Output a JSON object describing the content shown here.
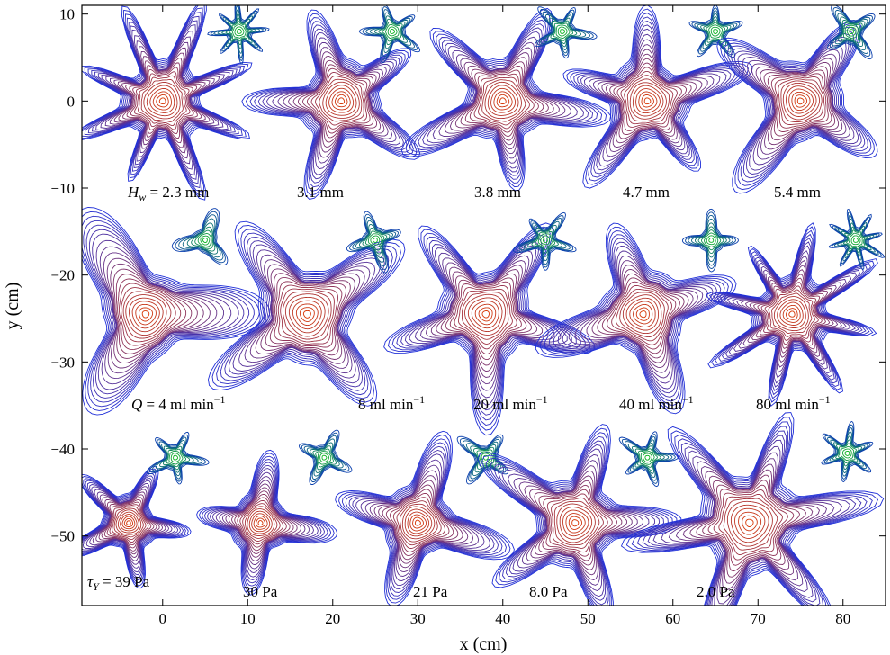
{
  "chart_data": {
    "type": "scatter",
    "title": "",
    "xlabel": "x (cm)",
    "ylabel": "y (cm)",
    "xlim": [
      -9.5,
      85
    ],
    "ylim": [
      -58,
      11
    ],
    "xticks": [
      0,
      10,
      20,
      30,
      40,
      50,
      60,
      70,
      80
    ],
    "yticks": [
      10,
      0,
      -10,
      -20,
      -30,
      -40,
      -50
    ],
    "tick_labels_x": [
      "0",
      "10",
      "20",
      "30",
      "40",
      "50",
      "60",
      "70",
      "80"
    ],
    "tick_labels_y": [
      "10",
      "0",
      "−10",
      "−20",
      "−30",
      "−40",
      "−50"
    ],
    "grid": false,
    "color_inner": "#e03a00",
    "color_outer": "#1f2fd8",
    "color_small_inner": "#18c41a",
    "color_small_outer": "#0a3fae",
    "rows": [
      {
        "parameter_symbol": "H",
        "parameter_subscript": "w",
        "parameter_unit": "mm",
        "patterns": [
          {
            "label": "2.3",
            "center": [
              0,
              0
            ],
            "arms": 8,
            "radius": 8.5,
            "small_center": [
              9,
              8
            ]
          },
          {
            "label": "3.1 mm",
            "center": [
              21,
              0
            ],
            "arms": 5,
            "radius": 8.5,
            "small_center": [
              27,
              8
            ]
          },
          {
            "label": "3.8 mm",
            "center": [
              40,
              0
            ],
            "arms": 5,
            "radius": 8.5,
            "small_center": [
              47,
              8
            ]
          },
          {
            "label": "4.7 mm",
            "center": [
              57,
              0
            ],
            "arms": 5,
            "radius": 8.5,
            "small_center": [
              65,
              8
            ]
          },
          {
            "label": "5.4 mm",
            "center": [
              75,
              0
            ],
            "arms": 4,
            "radius": 8.5,
            "small_center": [
              81,
              8
            ]
          }
        ]
      },
      {
        "parameter_symbol": "Q",
        "parameter_unit": "ml min",
        "unit_exponent": "−1",
        "patterns": [
          {
            "label": "4",
            "center": [
              -2,
              -24.5
            ],
            "arms": 3,
            "radius": 9.5,
            "small_center": [
              5,
              -16
            ]
          },
          {
            "label": "8 ml min",
            "center": [
              17,
              -24.5
            ],
            "arms": 4,
            "radius": 10,
            "small_center": [
              25,
              -16
            ]
          },
          {
            "label": "20 ml min",
            "center": [
              38,
              -24.5
            ],
            "arms": 5,
            "radius": 9.5,
            "small_center": [
              45,
              -16
            ]
          },
          {
            "label": "40 ml min",
            "center": [
              56.5,
              -24.5
            ],
            "arms": 4,
            "radius": 9,
            "small_center": [
              64.5,
              -16
            ]
          },
          {
            "label": "80 ml min",
            "center": [
              74,
              -24.5
            ],
            "arms": 8,
            "radius": 8,
            "small_center": [
              81.5,
              -16
            ]
          }
        ]
      },
      {
        "parameter_symbol": "τ",
        "parameter_subscript": "Y",
        "parameter_unit": "Pa",
        "patterns": [
          {
            "label": "39",
            "center": [
              -4,
              -48.5
            ],
            "arms": 5,
            "radius": 5.8,
            "small_center": [
              1.5,
              -41
            ]
          },
          {
            "label": "30 Pa",
            "center": [
              11.5,
              -48.5
            ],
            "arms": 4,
            "radius": 6.3,
            "small_center": [
              19,
              -41
            ]
          },
          {
            "label": "21 Pa",
            "center": [
              30,
              -48.5
            ],
            "arms": 4,
            "radius": 7.5,
            "small_center": [
              38,
              -41
            ]
          },
          {
            "label": "8.0 Pa",
            "center": [
              48.5,
              -48.5
            ],
            "arms": 5,
            "radius": 9,
            "small_center": [
              57,
              -41
            ]
          },
          {
            "label": "2.0 Pa",
            "center": [
              69,
              -48.5
            ],
            "arms": 6,
            "radius": 10.5,
            "small_center": [
              80.5,
              -40.5
            ]
          }
        ]
      }
    ]
  }
}
